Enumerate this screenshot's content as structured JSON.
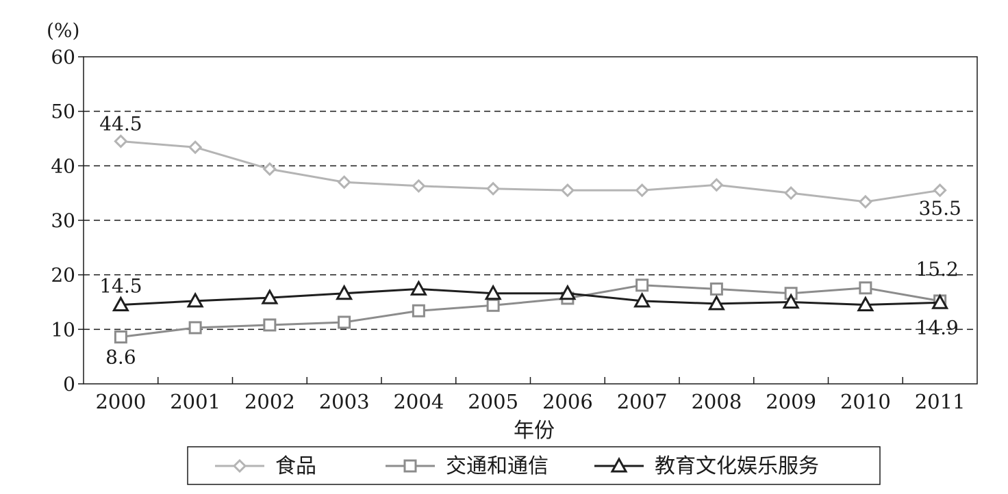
{
  "chart_data": {
    "type": "line",
    "unit_label": "(%)",
    "xlabel": "年份",
    "categories": [
      "2000",
      "2001",
      "2002",
      "2003",
      "2004",
      "2005",
      "2006",
      "2007",
      "2008",
      "2009",
      "2010",
      "2011"
    ],
    "ylim": [
      0,
      60
    ],
    "yticks": [
      "0",
      "10",
      "20",
      "30",
      "40",
      "50",
      "60"
    ],
    "grid": "horizontal-dashed",
    "legend_position": "bottom",
    "series": [
      {
        "name": "食品",
        "color": "#b4b4b4",
        "marker": "diamond",
        "values": [
          44.5,
          43.4,
          39.4,
          37.0,
          36.3,
          35.8,
          35.5,
          35.5,
          36.5,
          35.0,
          33.4,
          35.5
        ]
      },
      {
        "name": "交通和通信",
        "color": "#8c8c8c",
        "marker": "square",
        "values": [
          8.6,
          10.3,
          10.8,
          11.3,
          13.4,
          14.4,
          15.7,
          18.1,
          17.4,
          16.6,
          17.6,
          15.2
        ]
      },
      {
        "name": "教育文化娱乐服务",
        "color": "#1e1e1e",
        "marker": "triangle",
        "values": [
          14.5,
          15.2,
          15.8,
          16.6,
          17.4,
          16.6,
          16.6,
          15.2,
          14.7,
          15.0,
          14.5,
          14.9
        ]
      }
    ],
    "annotations": [
      {
        "text": "44.5",
        "series": 0,
        "index": 0
      },
      {
        "text": "35.5",
        "series": 0,
        "index": 11
      },
      {
        "text": "15.2",
        "series": 1,
        "index": 11
      },
      {
        "text": "8.6",
        "series": 1,
        "index": 0
      },
      {
        "text": "14.5",
        "series": 2,
        "index": 0
      },
      {
        "text": "14.9",
        "series": 2,
        "index": 11
      }
    ]
  }
}
